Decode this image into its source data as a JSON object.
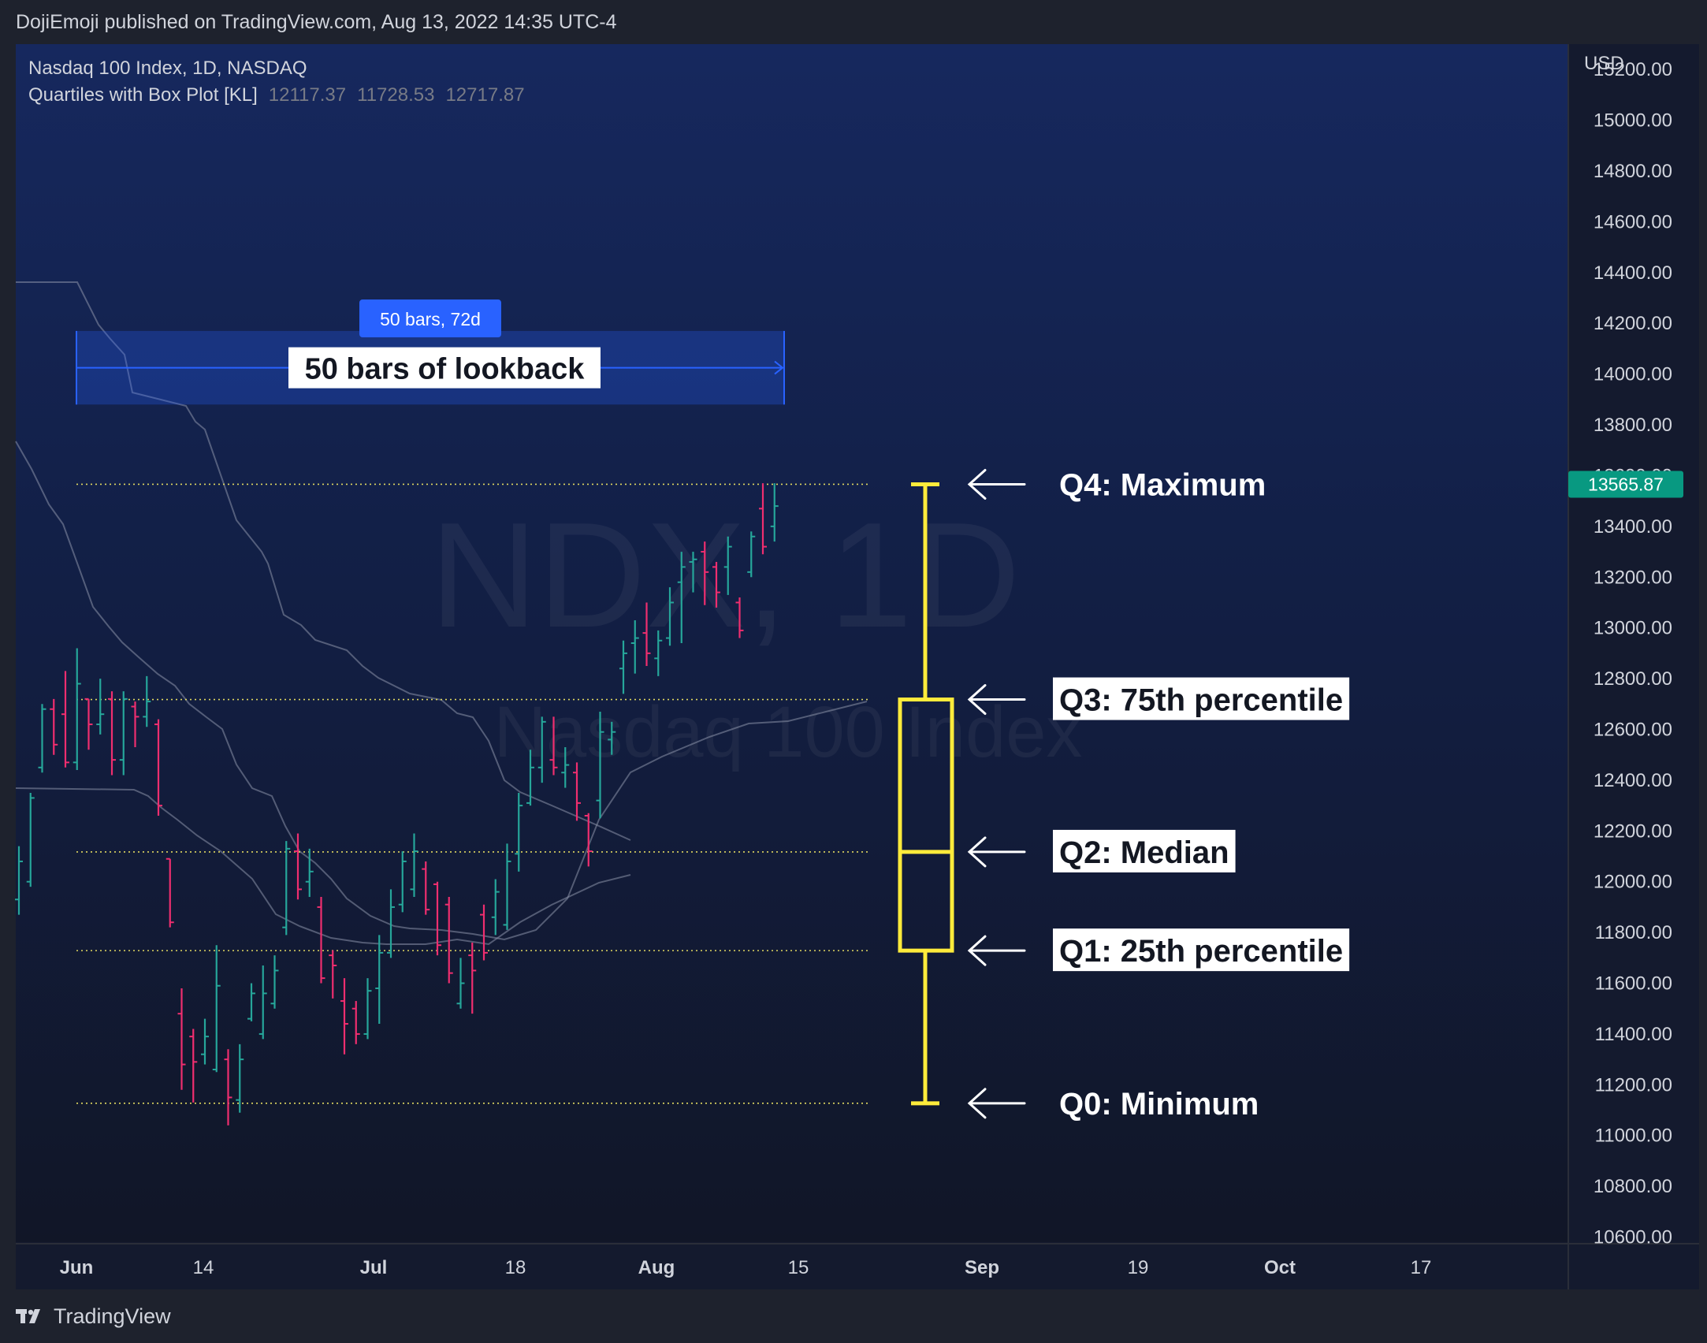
{
  "header": {
    "published": "DojiEmoji published on TradingView.com, Aug 13, 2022 14:35 UTC-4"
  },
  "legend": {
    "symbol": "Nasdaq 100 Index, 1D, NASDAQ",
    "indicator_name": "Quartiles with Box Plot [KL]",
    "indicator_values": [
      "12117.37",
      "11728.53",
      "12717.87"
    ]
  },
  "watermark": {
    "line1": "NDX, 1D",
    "line2": "Nasdaq 100 Index"
  },
  "axis": {
    "currency": "USD",
    "current_price": "13565.87"
  },
  "footer": {
    "brand": "TradingView"
  },
  "colors": {
    "up": "#26a69a",
    "down": "#ef2e6f",
    "box": "#ffeb3b",
    "accent": "#2962ff",
    "dotted": "#e0d860"
  },
  "chart_data": {
    "type": "ohlc-bar",
    "title": "Nasdaq 100 Index, 1D, NASDAQ",
    "ylim": [
      10580,
      15300
    ],
    "yticks": [
      10600,
      10800,
      11000,
      11200,
      11400,
      11600,
      11800,
      12000,
      12200,
      12400,
      12600,
      12800,
      13000,
      13200,
      13400,
      13600,
      13800,
      14000,
      14200,
      14400,
      14600,
      14800,
      15000,
      15200
    ],
    "xticks": [
      "Jun",
      "14",
      "Jul",
      "18",
      "Aug",
      "15",
      "Sep",
      "19",
      "Oct",
      "17"
    ],
    "measure": {
      "label": "50 bars, 72d",
      "text": "50 bars of lookback",
      "y_top": 14170,
      "y_bottom": 13880
    },
    "quartiles": [
      {
        "name": "Q4: Maximum",
        "value": 13565.87
      },
      {
        "name": "Q3: 75th percentile",
        "value": 12717.87
      },
      {
        "name": "Q2: Median",
        "value": 12117.37
      },
      {
        "name": "Q1: 25th percentile",
        "value": 11728.53
      },
      {
        "name": "Q0: Minimum",
        "value": 11127
      }
    ],
    "bars": [
      {
        "o": 11930,
        "h": 12140,
        "l": 11870,
        "c": 12080
      },
      {
        "o": 12000,
        "h": 12350,
        "l": 11980,
        "c": 12330
      },
      {
        "o": 12450,
        "h": 12700,
        "l": 12430,
        "c": 12680
      },
      {
        "o": 12680,
        "h": 12720,
        "l": 12500,
        "c": 12540
      },
      {
        "o": 12660,
        "h": 12830,
        "l": 12450,
        "c": 12470
      },
      {
        "o": 12470,
        "h": 12920,
        "l": 12440,
        "c": 12780
      },
      {
        "o": 12720,
        "h": 12720,
        "l": 12520,
        "c": 12620
      },
      {
        "o": 12620,
        "h": 12800,
        "l": 12580,
        "c": 12660
      },
      {
        "o": 12720,
        "h": 12750,
        "l": 12420,
        "c": 12480
      },
      {
        "o": 12480,
        "h": 12750,
        "l": 12420,
        "c": 12720
      },
      {
        "o": 12690,
        "h": 12710,
        "l": 12530,
        "c": 12650
      },
      {
        "o": 12650,
        "h": 12810,
        "l": 12610,
        "c": 12710
      },
      {
        "o": 12620,
        "h": 12640,
        "l": 12260,
        "c": 12300
      },
      {
        "o": 12090,
        "h": 12090,
        "l": 11820,
        "c": 11840
      },
      {
        "o": 11480,
        "h": 11580,
        "l": 11180,
        "c": 11280
      },
      {
        "o": 11390,
        "h": 11420,
        "l": 11130,
        "c": 11290
      },
      {
        "o": 11320,
        "h": 11460,
        "l": 11280,
        "c": 11390
      },
      {
        "o": 11260,
        "h": 11750,
        "l": 11250,
        "c": 11590
      },
      {
        "o": 11300,
        "h": 11340,
        "l": 11040,
        "c": 11150
      },
      {
        "o": 11140,
        "h": 11360,
        "l": 11090,
        "c": 11300
      },
      {
        "o": 11460,
        "h": 11600,
        "l": 11450,
        "c": 11560
      },
      {
        "o": 11400,
        "h": 11670,
        "l": 11380,
        "c": 11560
      },
      {
        "o": 11520,
        "h": 11710,
        "l": 11500,
        "c": 11650
      },
      {
        "o": 11820,
        "h": 12160,
        "l": 11790,
        "c": 12130
      },
      {
        "o": 12120,
        "h": 12190,
        "l": 11930,
        "c": 11970
      },
      {
        "o": 12000,
        "h": 12130,
        "l": 11940,
        "c": 12040
      },
      {
        "o": 11900,
        "h": 11940,
        "l": 11600,
        "c": 11620
      },
      {
        "o": 11710,
        "h": 11730,
        "l": 11540,
        "c": 11670
      },
      {
        "o": 11530,
        "h": 11620,
        "l": 11320,
        "c": 11440
      },
      {
        "o": 11500,
        "h": 11530,
        "l": 11360,
        "c": 11400
      },
      {
        "o": 11400,
        "h": 11620,
        "l": 11380,
        "c": 11570
      },
      {
        "o": 11580,
        "h": 11790,
        "l": 11440,
        "c": 11720
      },
      {
        "o": 11720,
        "h": 11970,
        "l": 11700,
        "c": 11900
      },
      {
        "o": 11910,
        "h": 12120,
        "l": 11880,
        "c": 12080
      },
      {
        "o": 11970,
        "h": 12190,
        "l": 11940,
        "c": 12120
      },
      {
        "o": 12050,
        "h": 12080,
        "l": 11870,
        "c": 11890
      },
      {
        "o": 11990,
        "h": 12000,
        "l": 11710,
        "c": 11750
      },
      {
        "o": 11910,
        "h": 11940,
        "l": 11600,
        "c": 11640
      },
      {
        "o": 11520,
        "h": 11700,
        "l": 11500,
        "c": 11600
      },
      {
        "o": 11710,
        "h": 11760,
        "l": 11480,
        "c": 11650
      },
      {
        "o": 11870,
        "h": 11910,
        "l": 11690,
        "c": 11720
      },
      {
        "o": 11860,
        "h": 12010,
        "l": 11790,
        "c": 11960
      },
      {
        "o": 11830,
        "h": 12150,
        "l": 11810,
        "c": 12080
      },
      {
        "o": 12110,
        "h": 12350,
        "l": 12040,
        "c": 12300
      },
      {
        "o": 12310,
        "h": 12520,
        "l": 12300,
        "c": 12450
      },
      {
        "o": 12450,
        "h": 12650,
        "l": 12390,
        "c": 12630
      },
      {
        "o": 12480,
        "h": 12650,
        "l": 12420,
        "c": 12450
      },
      {
        "o": 12430,
        "h": 12530,
        "l": 12370,
        "c": 12460
      },
      {
        "o": 12430,
        "h": 12470,
        "l": 12240,
        "c": 12310
      },
      {
        "o": 12260,
        "h": 12270,
        "l": 12060,
        "c": 12120
      },
      {
        "o": 12320,
        "h": 12670,
        "l": 12250,
        "c": 12590
      },
      {
        "o": 12560,
        "h": 12630,
        "l": 12500,
        "c": 12590
      },
      {
        "o": 12840,
        "h": 12950,
        "l": 12740,
        "c": 12900
      },
      {
        "o": 12940,
        "h": 13030,
        "l": 12820,
        "c": 12960
      },
      {
        "o": 12980,
        "h": 13100,
        "l": 12850,
        "c": 12900
      },
      {
        "o": 12880,
        "h": 12990,
        "l": 12810,
        "c": 12950
      },
      {
        "o": 12960,
        "h": 13160,
        "l": 12930,
        "c": 13100
      },
      {
        "o": 13180,
        "h": 13300,
        "l": 12940,
        "c": 13240
      },
      {
        "o": 13260,
        "h": 13300,
        "l": 13140,
        "c": 13270
      },
      {
        "o": 13300,
        "h": 13340,
        "l": 13090,
        "c": 13220
      },
      {
        "o": 13240,
        "h": 13260,
        "l": 13080,
        "c": 13140
      },
      {
        "o": 13240,
        "h": 13360,
        "l": 13130,
        "c": 13320
      },
      {
        "o": 13100,
        "h": 13120,
        "l": 12960,
        "c": 12990
      },
      {
        "o": 13220,
        "h": 13380,
        "l": 13200,
        "c": 13360
      },
      {
        "o": 13470,
        "h": 13570,
        "l": 13290,
        "c": 13320
      },
      {
        "o": 13400,
        "h": 13570,
        "l": 13340,
        "c": 13480
      }
    ]
  }
}
